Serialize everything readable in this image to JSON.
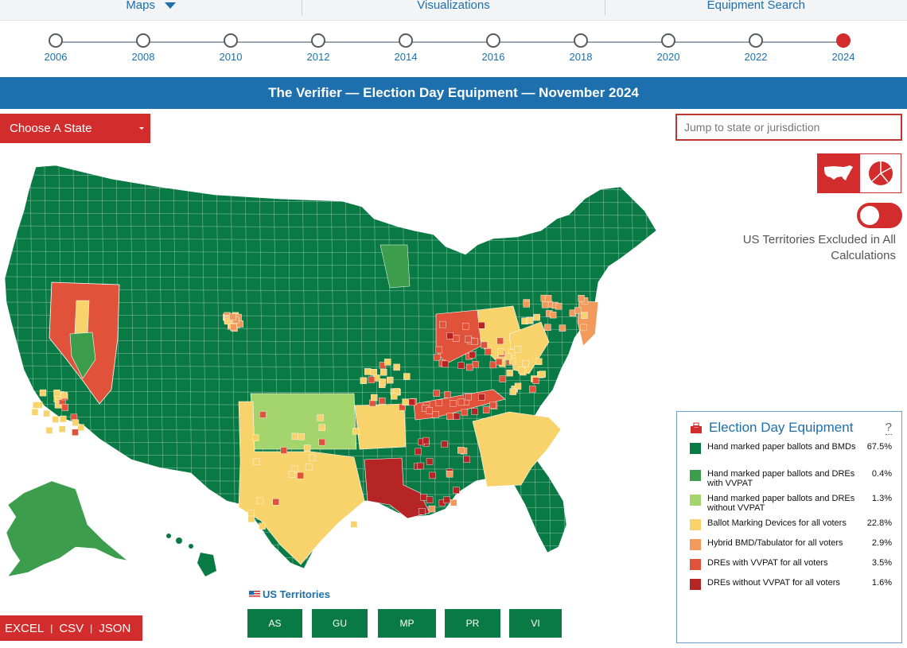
{
  "nav": {
    "items": [
      {
        "label": "Maps",
        "has_caret": true
      },
      {
        "label": "Visualizations",
        "has_caret": false
      },
      {
        "label": "Equipment Search",
        "has_caret": false
      }
    ]
  },
  "timeline": {
    "years": [
      "2006",
      "2008",
      "2010",
      "2012",
      "2014",
      "2016",
      "2018",
      "2020",
      "2022",
      "2024"
    ],
    "selected": "2024"
  },
  "title": "The Verifier — Election Day Equipment — November 2024",
  "choose_state": {
    "label": "Choose A State"
  },
  "jump": {
    "placeholder": "Jump to state or jurisdiction"
  },
  "view_toggle": {
    "map_icon": "us-map-icon",
    "pie_icon": "pie-chart-icon"
  },
  "territories_toggle": {
    "note": "US Territories Excluded in All Calculations"
  },
  "legend": {
    "icon": "ballot-box-icon",
    "title": "Election Day Equipment",
    "help": "?",
    "items": [
      {
        "label": "Hand marked paper ballots and BMDs",
        "pct": "67.5%",
        "color": "#0a7a45"
      },
      {
        "label": "Hand marked paper ballots and DREs with VVPAT",
        "pct": "0.4%",
        "color": "#3c9e4d"
      },
      {
        "label": "Hand marked paper ballots and DREs without VVPAT",
        "pct": "1.3%",
        "color": "#a4d46c"
      },
      {
        "label": "Ballot Marking Devices for all voters",
        "pct": "22.8%",
        "color": "#f8d36c"
      },
      {
        "label": "Hybrid BMD/Tabulator for all voters",
        "pct": "2.9%",
        "color": "#f19a5b"
      },
      {
        "label": "DREs with VVPAT for all voters",
        "pct": "3.5%",
        "color": "#e0533a"
      },
      {
        "label": "DREs without VVPAT for all voters",
        "pct": "1.6%",
        "color": "#b52525"
      }
    ]
  },
  "territories": {
    "label": "US Territories",
    "buttons": [
      "AS",
      "GU",
      "MP",
      "PR",
      "VI"
    ]
  },
  "export": {
    "excel": "EXCEL",
    "csv": "CSV",
    "json": "JSON"
  }
}
